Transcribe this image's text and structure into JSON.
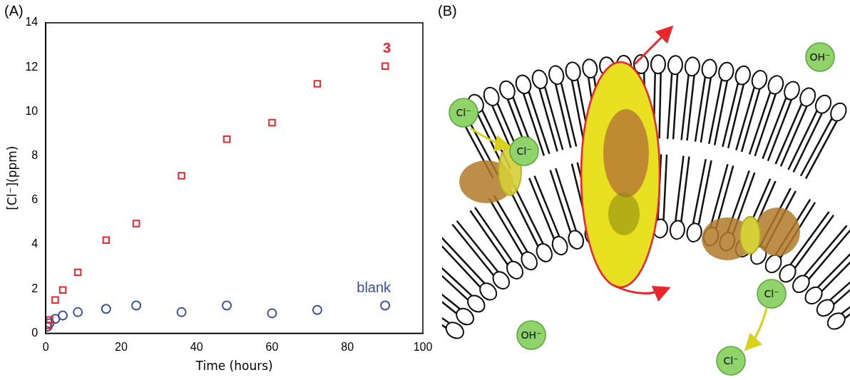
{
  "panel_labels": [
    "(A)",
    "(B)"
  ],
  "chart_data": {
    "type": "scatter",
    "x_label": "Time (hours)",
    "y_label": "[Cl⁻](ppm)",
    "x": [
      0.5,
      1,
      2.5,
      4.5,
      8.5,
      16,
      24,
      36,
      48,
      60,
      72,
      90
    ],
    "series": [
      {
        "name": "3",
        "color": "#e8262b",
        "marker": "square",
        "values": [
          0.35,
          0.6,
          1.5,
          1.95,
          2.75,
          4.2,
          4.95,
          7.1,
          8.75,
          9.5,
          11.25,
          12.05
        ]
      },
      {
        "name": "blank",
        "color": "#3a4fa0",
        "marker": "circle",
        "values": [
          0.3,
          0.45,
          0.65,
          0.8,
          0.95,
          1.1,
          1.25,
          0.95,
          1.25,
          0.9,
          1.05,
          1.25
        ]
      }
    ],
    "xlim": [
      0,
      100
    ],
    "xticks": [
      0,
      20,
      40,
      60,
      80,
      100
    ],
    "ylim": [
      0,
      14
    ],
    "yticks": [
      0,
      2,
      4,
      6,
      8,
      10,
      12,
      14
    ],
    "grid": false
  },
  "diagram": {
    "ions": [
      "Cl⁻",
      "Cl⁻",
      "OH⁻",
      "OH⁻",
      "Cl⁻",
      "Cl⁻"
    ]
  }
}
